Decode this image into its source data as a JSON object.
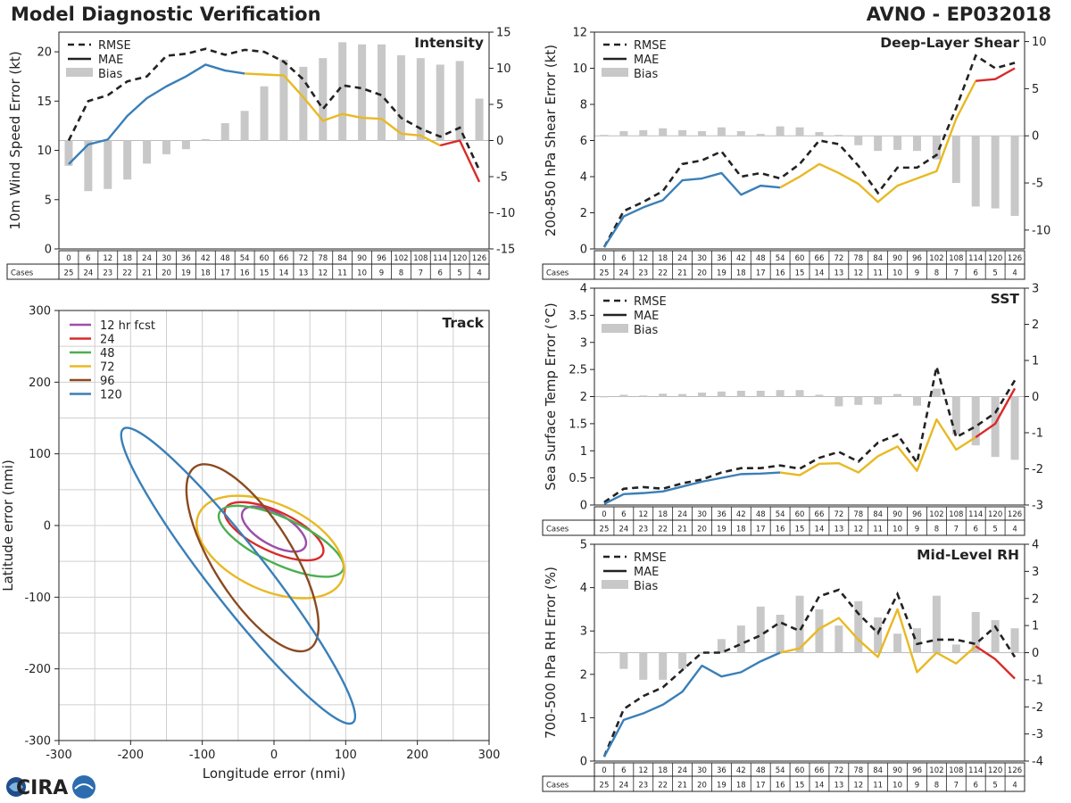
{
  "header": {
    "title": "Model Diagnostic Verification",
    "model_storm": "AVNO - EP032018"
  },
  "table": {
    "hours": [
      0,
      6,
      12,
      18,
      24,
      30,
      36,
      42,
      48,
      54,
      60,
      66,
      72,
      78,
      84,
      90,
      96,
      102,
      108,
      114,
      120,
      126
    ],
    "cases_label": "Cases",
    "cases": [
      25,
      24,
      23,
      22,
      21,
      20,
      19,
      18,
      17,
      16,
      15,
      14,
      13,
      12,
      11,
      10,
      9,
      8,
      7,
      6,
      5,
      4
    ]
  },
  "legend": {
    "rmse": "RMSE",
    "mae": "MAE",
    "bias": "Bias"
  },
  "colors": {
    "early": "#3a7fb8",
    "mid": "#e8b923",
    "late": "#d92a2a",
    "bias": "#c8c8c8",
    "rmse": "#222222"
  },
  "logo": {
    "text": "CIRA"
  },
  "chart_data": [
    {
      "id": "intensity",
      "type": "line",
      "title": "Intensity",
      "ylabel": "10m Wind Speed Error (kt)",
      "ylim": [
        0,
        22
      ],
      "yticks": [
        0,
        5,
        10,
        15,
        20
      ],
      "y2lim": [
        -15,
        15
      ],
      "y2ticks": [
        -15,
        -10,
        -5,
        0,
        5,
        10,
        15
      ],
      "rmse": [
        11.0,
        15.0,
        15.6,
        17.0,
        17.5,
        19.6,
        19.8,
        20.3,
        19.7,
        20.2,
        20.0,
        19.0,
        17.2,
        14.2,
        16.6,
        16.3,
        15.6,
        13.3,
        12.2,
        11.4,
        12.3,
        8.0
      ],
      "mae": [
        8.6,
        10.6,
        11.1,
        13.5,
        15.3,
        16.5,
        17.5,
        18.7,
        18.1,
        17.8,
        17.7,
        17.6,
        15.4,
        13.0,
        13.7,
        13.3,
        13.2,
        11.7,
        11.5,
        10.5,
        11.0,
        6.8
      ],
      "bias": [
        -3.5,
        -7.0,
        -6.7,
        -5.4,
        -3.2,
        -1.9,
        -1.2,
        0.2,
        2.4,
        4.1,
        7.5,
        11.2,
        10.2,
        11.4,
        13.6,
        13.3,
        13.3,
        11.8,
        11.4,
        10.5,
        11.0,
        5.8
      ]
    },
    {
      "id": "shear",
      "type": "line",
      "title": "Deep-Layer Shear",
      "ylabel": "200-850 hPa Shear Error (kt)",
      "ylim": [
        0,
        12
      ],
      "yticks": [
        0,
        2,
        4,
        6,
        8,
        10,
        12
      ],
      "y2lim": [
        -12,
        11
      ],
      "y2ticks": [
        -10,
        -5,
        0,
        5,
        10
      ],
      "rmse": [
        0.1,
        2.1,
        2.6,
        3.2,
        4.7,
        4.9,
        5.4,
        4.0,
        4.2,
        3.9,
        4.7,
        6.0,
        5.8,
        4.6,
        3.1,
        4.5,
        4.5,
        5.2,
        7.8,
        10.7,
        10.0,
        10.3
      ],
      "mae": [
        0.1,
        1.8,
        2.3,
        2.7,
        3.8,
        3.9,
        4.2,
        3.0,
        3.5,
        3.4,
        4.0,
        4.7,
        4.2,
        3.6,
        2.6,
        3.5,
        3.9,
        4.3,
        7.2,
        9.3,
        9.4,
        10.0
      ],
      "bias": [
        0.1,
        0.5,
        0.6,
        0.8,
        0.6,
        0.5,
        0.9,
        0.5,
        0.2,
        1.0,
        0.9,
        0.4,
        0.1,
        -1.0,
        -1.6,
        -1.5,
        -1.6,
        -2.5,
        -5.0,
        -7.5,
        -7.7,
        -8.5
      ]
    },
    {
      "id": "sst",
      "type": "line",
      "title": "SST",
      "ylabel": "Sea Surface Temp Error (°C)",
      "ylim": [
        0,
        4.0
      ],
      "yticks": [
        0.0,
        0.5,
        1.0,
        1.5,
        2.0,
        2.5,
        3.0,
        3.5,
        4.0
      ],
      "y2lim": [
        -3,
        3
      ],
      "y2ticks": [
        -3,
        -2,
        -1,
        0,
        1,
        2,
        3
      ],
      "rmse": [
        0.05,
        0.3,
        0.33,
        0.3,
        0.4,
        0.47,
        0.6,
        0.68,
        0.68,
        0.73,
        0.67,
        0.87,
        0.98,
        0.8,
        1.15,
        1.3,
        0.78,
        2.55,
        1.25,
        1.45,
        1.7,
        2.3
      ],
      "mae": [
        0.02,
        0.2,
        0.22,
        0.25,
        0.34,
        0.43,
        0.5,
        0.57,
        0.58,
        0.6,
        0.55,
        0.76,
        0.77,
        0.6,
        0.9,
        1.08,
        0.63,
        1.58,
        1.02,
        1.25,
        1.5,
        2.15
      ],
      "bias": [
        0.0,
        0.05,
        0.03,
        0.08,
        0.07,
        0.11,
        0.14,
        0.16,
        0.16,
        0.18,
        0.18,
        0.05,
        -0.27,
        -0.23,
        -0.22,
        0.07,
        -0.25,
        0.22,
        -1.05,
        -1.35,
        -1.67,
        -1.75
      ]
    },
    {
      "id": "rh",
      "type": "line",
      "title": "Mid-Level RH",
      "ylabel": "700-500 hPa RH Error (%)",
      "ylim": [
        0,
        5
      ],
      "yticks": [
        0,
        1,
        2,
        3,
        4,
        5
      ],
      "y2lim": [
        -4,
        4
      ],
      "y2ticks": [
        -4,
        -3,
        -2,
        -1,
        0,
        1,
        2,
        3,
        4
      ],
      "rmse": [
        0.1,
        1.2,
        1.5,
        1.7,
        2.1,
        2.5,
        2.5,
        2.7,
        2.9,
        3.2,
        3.0,
        3.8,
        3.95,
        3.4,
        2.95,
        3.85,
        2.7,
        2.8,
        2.8,
        2.7,
        3.1,
        2.4
      ],
      "mae": [
        0.1,
        0.95,
        1.1,
        1.3,
        1.6,
        2.2,
        1.95,
        2.05,
        2.3,
        2.5,
        2.6,
        3.05,
        3.3,
        2.8,
        2.4,
        3.5,
        2.05,
        2.5,
        2.25,
        2.65,
        2.35,
        1.9
      ],
      "bias": [
        0.0,
        -0.6,
        -1.0,
        -1.0,
        -0.6,
        0.0,
        0.5,
        1.0,
        1.7,
        1.4,
        2.1,
        1.6,
        1.0,
        1.9,
        1.3,
        0.7,
        0.9,
        2.1,
        0.3,
        1.5,
        1.2,
        0.9
      ]
    },
    {
      "id": "track",
      "type": "ellipse",
      "title": "Track",
      "xlabel": "Longitude error (nmi)",
      "ylabel": "Latitude error (nmi)",
      "xlim": [
        -300,
        300
      ],
      "ylim": [
        -300,
        300
      ],
      "ticks": [
        -300,
        -200,
        -100,
        0,
        100,
        200,
        300
      ],
      "grid_step": 50,
      "series": [
        {
          "name": "12 hr fcst",
          "color": "#9b4fa8",
          "center": [
            0,
            -5
          ],
          "semi_major": 50,
          "semi_minor": 22,
          "angle_deg": -30
        },
        {
          "name": "24",
          "color": "#d92a2a",
          "center": [
            0,
            -8
          ],
          "semi_major": 75,
          "semi_minor": 28,
          "angle_deg": -25
        },
        {
          "name": "48",
          "color": "#4caf50",
          "center": [
            10,
            -22
          ],
          "semi_major": 95,
          "semi_minor": 32,
          "angle_deg": -25
        },
        {
          "name": "72",
          "color": "#e8b923",
          "center": [
            -5,
            -30
          ],
          "semi_major": 110,
          "semi_minor": 60,
          "angle_deg": -25
        },
        {
          "name": "96",
          "color": "#8b4a20",
          "center": [
            -30,
            -45
          ],
          "semi_major": 150,
          "semi_minor": 55,
          "angle_deg": -58
        },
        {
          "name": "120",
          "color": "#3a7fb8",
          "center": [
            -50,
            -70
          ],
          "semi_major": 260,
          "semi_minor": 40,
          "angle_deg": -52
        }
      ]
    }
  ]
}
